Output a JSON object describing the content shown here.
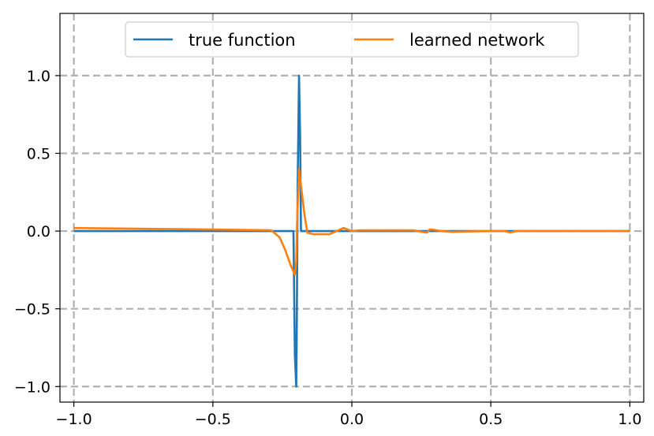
{
  "chart_data": {
    "type": "line",
    "title": "",
    "xlabel": "",
    "ylabel": "",
    "xlim": [
      -1.05,
      1.05
    ],
    "ylim": [
      -1.1,
      1.4
    ],
    "grid": true,
    "grid_style": "dashed",
    "legend_position": "upper center",
    "x_ticks": [
      -1.0,
      -0.5,
      0.0,
      0.5,
      1.0
    ],
    "x_tick_labels": [
      "−1.0",
      "−0.5",
      "0.0",
      "0.5",
      "1.0"
    ],
    "y_ticks": [
      -1.0,
      -0.5,
      0.0,
      0.5,
      1.0
    ],
    "y_tick_labels": [
      "−1.0",
      "−0.5",
      "0.0",
      "0.5",
      "1.0"
    ],
    "series": [
      {
        "name": "true function",
        "color": "#1f77b4",
        "x": [
          -1.0,
          -0.21,
          -0.205,
          -0.2,
          -0.198,
          -0.195,
          -0.19,
          -0.186,
          -0.183,
          -0.18,
          -0.175,
          -0.17,
          1.0
        ],
        "y": [
          0.0,
          0.0,
          -0.8,
          -1.0,
          -0.6,
          0.3,
          1.0,
          0.6,
          0.0,
          0.0,
          0.0,
          0.0,
          0.0
        ]
      },
      {
        "name": "learned network",
        "color": "#ff7f0e",
        "x": [
          -1.0,
          -0.5,
          -0.29,
          -0.26,
          -0.24,
          -0.22,
          -0.205,
          -0.2,
          -0.197,
          -0.19,
          -0.18,
          -0.17,
          -0.16,
          -0.14,
          -0.08,
          -0.03,
          0.0,
          0.03,
          0.1,
          0.22,
          0.27,
          0.28,
          0.29,
          0.32,
          0.36,
          0.5,
          0.55,
          0.57,
          0.59,
          1.0
        ],
        "y": [
          0.02,
          0.01,
          0.005,
          -0.04,
          -0.12,
          -0.22,
          -0.28,
          -0.2,
          0.05,
          0.4,
          0.25,
          0.1,
          -0.01,
          -0.02,
          -0.02,
          0.02,
          0.0,
          0.005,
          0.005,
          0.005,
          -0.01,
          0.01,
          0.01,
          0.0,
          -0.005,
          0.0,
          0.0,
          -0.01,
          0.0,
          0.0
        ]
      }
    ]
  }
}
